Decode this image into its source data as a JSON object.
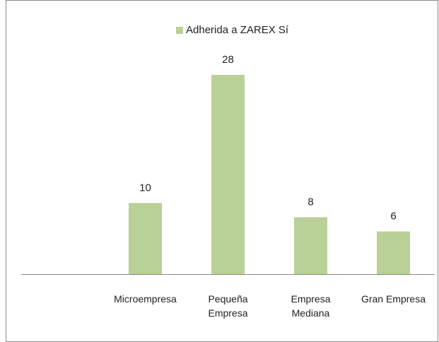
{
  "chart_data": {
    "type": "bar",
    "categories": [
      null,
      "Microempresa",
      "Pequeña Empresa",
      "Empresa Mediana",
      "Gran Empresa"
    ],
    "series": [
      {
        "name": "Adherida a ZAREX Sí",
        "color": "#b9d097",
        "values": [
          null,
          10,
          28,
          8,
          6
        ]
      }
    ],
    "legend": "top"
  }
}
